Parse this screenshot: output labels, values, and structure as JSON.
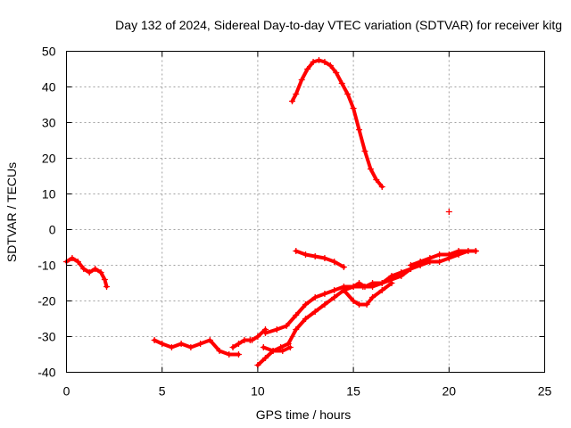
{
  "chart_data": {
    "type": "scatter",
    "title": "Day 132 of 2024, Sidereal Day-to-day VTEC variation (SDTVAR) for receiver kitg",
    "xlabel": "GPS time / hours",
    "ylabel": "SDTVAR / TECUs",
    "xlim": [
      0,
      25
    ],
    "ylim": [
      -40,
      50
    ],
    "xticks": [
      0,
      5,
      10,
      15,
      20,
      25
    ],
    "yticks": [
      -40,
      -30,
      -20,
      -10,
      0,
      10,
      20,
      30,
      40,
      50
    ],
    "xtick_labels": [
      "0",
      "5",
      "10",
      "15",
      "20",
      "25"
    ],
    "ytick_labels": [
      "-40",
      "-30",
      "-20",
      "-10",
      "0",
      "10",
      "20",
      "30",
      "40",
      "50"
    ],
    "grid": true,
    "marker": "+",
    "color": "#ff0000",
    "series": [
      {
        "name": "arc-1",
        "x": [
          0.0,
          0.3,
          0.6,
          0.9,
          1.2,
          1.5,
          1.8,
          2.0,
          2.1
        ],
        "y": [
          -9,
          -8,
          -9,
          -11,
          -12,
          -11,
          -12,
          -14,
          -16
        ]
      },
      {
        "name": "arc-2",
        "x": [
          4.6,
          5.0,
          5.5,
          6.0,
          6.5,
          7.0,
          7.5,
          8.0,
          8.5,
          9.0
        ],
        "y": [
          -31,
          -32,
          -33,
          -32,
          -33,
          -32,
          -31,
          -34,
          -35,
          -35
        ]
      },
      {
        "name": "arc-3",
        "x": [
          8.7,
          9.0,
          9.3,
          9.6
        ],
        "y": [
          -33,
          -32,
          -31,
          -31
        ]
      },
      {
        "name": "arc-4",
        "x": [
          9.7,
          10.0,
          10.4
        ],
        "y": [
          -31,
          -30,
          -28
        ]
      },
      {
        "name": "arc-5",
        "x": [
          10.0,
          10.4,
          10.8,
          11.2,
          11.6,
          12.0,
          12.5,
          13.0,
          13.5,
          14.0,
          14.5,
          15.0,
          15.3,
          15.6,
          16.0,
          16.5,
          17.0,
          17.5,
          18.0,
          18.5,
          19.0
        ],
        "y": [
          -38,
          -36,
          -34,
          -33,
          -32,
          -28,
          -25,
          -23,
          -21,
          -19,
          -17,
          -16,
          -15,
          -16,
          -15,
          -15,
          -14,
          -13,
          -11,
          -10,
          -9
        ]
      },
      {
        "name": "arc-6",
        "x": [
          10.4,
          11.0,
          11.5,
          12.0,
          12.5,
          13.0,
          13.5,
          14.0,
          14.5,
          15.0,
          15.5,
          16.0,
          16.5,
          17.0,
          17.5,
          18.0,
          18.5,
          19.0,
          19.5,
          20.0,
          20.5,
          21.0,
          21.4
        ],
        "y": [
          -29,
          -28,
          -27,
          -24,
          -21,
          -19,
          -18,
          -17,
          -16,
          -16,
          -16,
          -16,
          -15,
          -13,
          -12,
          -11,
          -9,
          -8,
          -7,
          -7,
          -6,
          -6,
          -6
        ]
      },
      {
        "name": "arc-7",
        "x": [
          10.3,
          10.8,
          11.3,
          11.7
        ],
        "y": [
          -33,
          -34,
          -34,
          -33
        ]
      },
      {
        "name": "arc-8",
        "x": [
          14.5,
          15.0,
          15.3,
          15.7,
          16.0,
          16.5,
          17.0
        ],
        "y": [
          -17,
          -20,
          -21,
          -21,
          -19,
          -17,
          -15
        ]
      },
      {
        "name": "arc-9",
        "x": [
          12.0,
          12.5,
          13.0,
          13.5,
          14.0,
          14.5
        ],
        "y": [
          -6,
          -7,
          -7.5,
          -8,
          -9,
          -10.5
        ]
      },
      {
        "name": "arc-10",
        "x": [
          18.0,
          18.5,
          19.0,
          19.5,
          20.0,
          20.5,
          21.0,
          21.4
        ],
        "y": [
          -10,
          -9,
          -9,
          -9,
          -8,
          -7,
          -6,
          -6
        ]
      },
      {
        "name": "arc-11",
        "x": [
          11.8,
          12.0,
          12.3,
          12.6,
          12.9,
          13.2,
          13.5,
          13.8,
          14.1,
          14.4,
          14.7,
          15.0,
          15.3,
          15.6,
          15.9,
          16.2,
          16.5
        ],
        "y": [
          36,
          38,
          42,
          45,
          47,
          47.5,
          47,
          46,
          44,
          41,
          38,
          34,
          28,
          22,
          17,
          14,
          12
        ]
      },
      {
        "name": "point",
        "x": [
          20.0
        ],
        "y": [
          5
        ]
      }
    ]
  }
}
